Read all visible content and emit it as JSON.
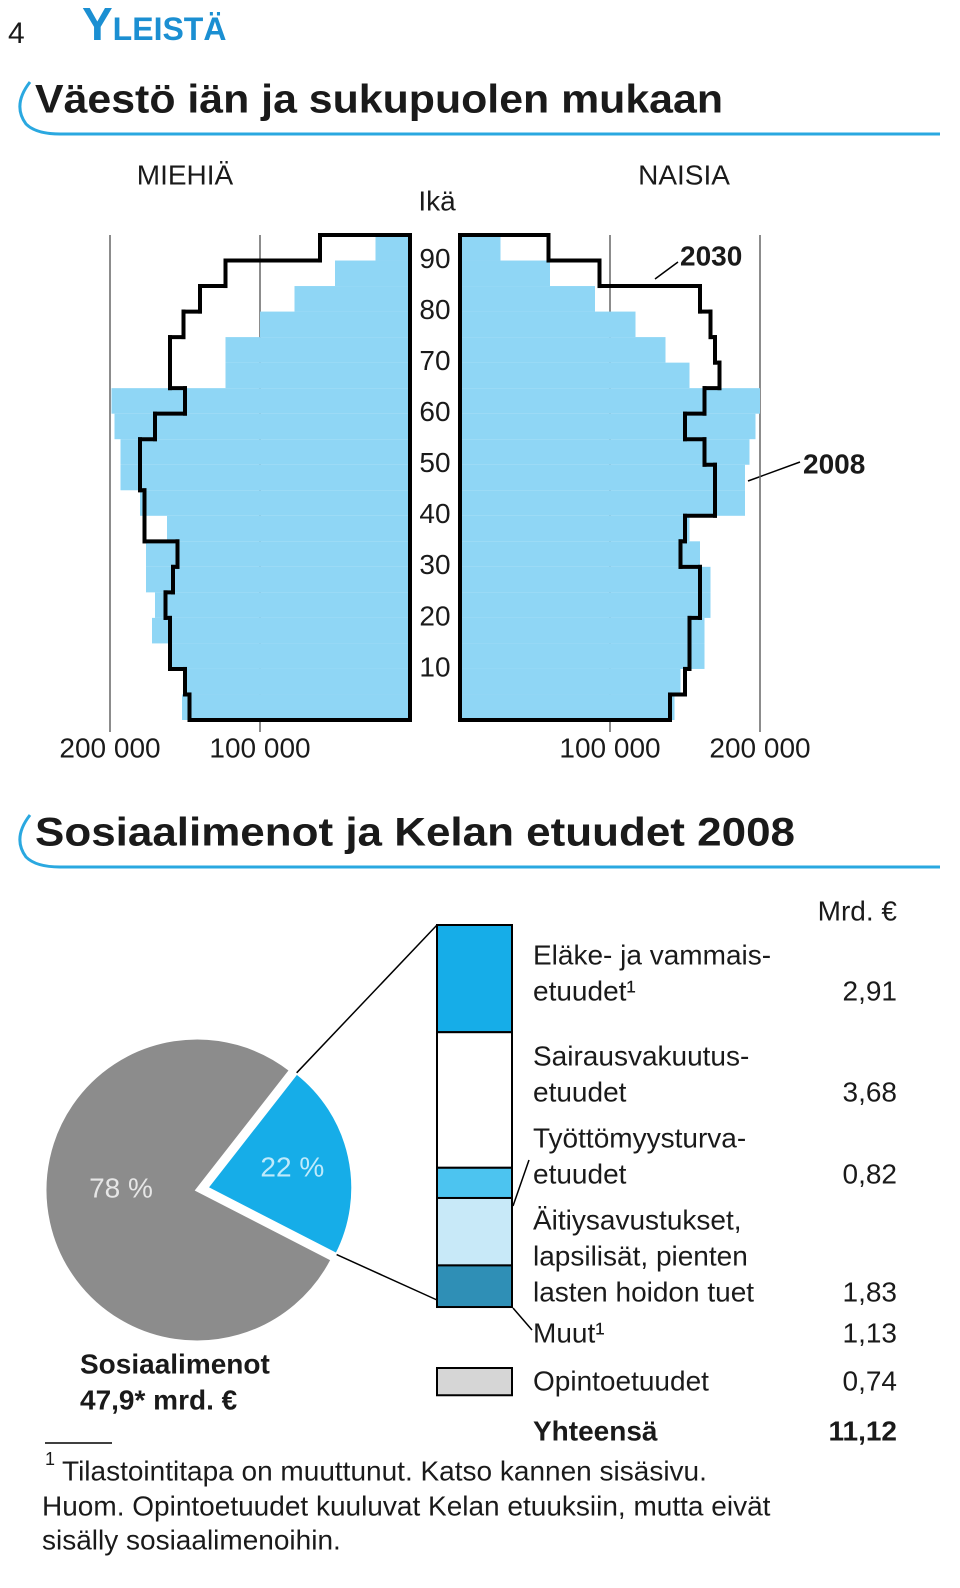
{
  "header": {
    "page": "4",
    "section": "Yleistä"
  },
  "chart_data": [
    {
      "type": "pyramid",
      "title": "Väestö iän ja sukupuolen mukaan",
      "ylabel": "Ikä",
      "bins": [
        0,
        5,
        10,
        15,
        20,
        25,
        30,
        35,
        40,
        45,
        50,
        55,
        60,
        65,
        70,
        75,
        80,
        85,
        90,
        95
      ],
      "ylim": [
        0,
        95
      ],
      "yticks": [
        10,
        20,
        30,
        40,
        50,
        60,
        70,
        80,
        90
      ],
      "xlim": [
        0,
        200000
      ],
      "xticks": [
        {
          "value": 100000,
          "label": "100 000"
        },
        {
          "value": 200000,
          "label": "200 000"
        }
      ],
      "grid": true,
      "sides": [
        {
          "name": "MIEHIÄ",
          "series": [
            {
              "name": "2008",
              "color": "#8fd6f5",
              "values": [
                152000,
                150000,
                160000,
                172000,
                170000,
                176000,
                176000,
                162000,
                180000,
                193000,
                193000,
                197000,
                199000,
                123000,
                123000,
                100000,
                77000,
                50000,
                23000
              ]
            },
            {
              "name": "2030",
              "color": "#000000",
              "values": [
                147000,
                150000,
                160000,
                160000,
                163000,
                158000,
                155000,
                177000,
                177000,
                180000,
                180000,
                170000,
                150000,
                160000,
                160000,
                151000,
                140000,
                123000,
                60000
              ]
            }
          ]
        },
        {
          "name": "NAISIA",
          "series": [
            {
              "name": "2008",
              "color": "#8fd6f5",
              "values": [
                143000,
                147000,
                163000,
                163000,
                167000,
                167000,
                160000,
                153000,
                190000,
                190000,
                193000,
                197000,
                200000,
                153000,
                137000,
                117000,
                90000,
                60000,
                27000
              ]
            },
            {
              "name": "2030",
              "color": "#000000",
              "values": [
                140000,
                150000,
                153000,
                153000,
                160000,
                160000,
                147000,
                150000,
                170000,
                170000,
                163000,
                150000,
                163000,
                173000,
                170000,
                167000,
                160000,
                93000,
                59000
              ]
            }
          ]
        }
      ]
    },
    {
      "type": "pie",
      "title": "Sosiaalimenot ja Kelan etuudet 2008",
      "values": [
        78,
        22
      ],
      "value_labels": [
        "78 %",
        "22 %"
      ],
      "colors": [
        "#8c8c8c",
        "#16ade8"
      ],
      "label": [
        "Sosiaalimenot",
        "47,9* mrd. €"
      ]
    },
    {
      "type": "stacked_bar",
      "unit": "Mrd. €",
      "categories": [
        [
          "Eläke- ja vammais-",
          "etuudet¹"
        ],
        [
          "Sairausvakuutus-",
          "etuudet"
        ],
        [
          "Työttömyysturva-",
          "etuudet"
        ],
        [
          "Äitiysavustukset,",
          "lapsilisät, pienten",
          "lasten hoidon tuet"
        ],
        [
          "Muut¹"
        ]
      ],
      "values": [
        2.91,
        3.68,
        0.82,
        1.83,
        1.13
      ],
      "value_labels": [
        "2,91",
        "3,68",
        "0,82",
        "1,83",
        "1,13"
      ],
      "colors": [
        "#16ade8",
        "#ffffff",
        "#4cc4f0",
        "#c8e9f8",
        "#2f8fb6"
      ],
      "extra": {
        "category": [
          "Opintoetuudet"
        ],
        "value": 0.74,
        "value_label": "0,74",
        "color": "#d6d6d6"
      },
      "total": {
        "label": "Yhteensä",
        "value": 11.12,
        "value_label": "11,12"
      }
    }
  ],
  "footnote": {
    "mark": "1",
    "text": "Tilastointitapa on muuttunut. Katso kannen sisäsivu."
  },
  "note": [
    "Huom. Opintoetuudet kuuluvat Kelan etuuksiin, mutta eivät",
    "sisälly sosiaalimenoihin."
  ]
}
